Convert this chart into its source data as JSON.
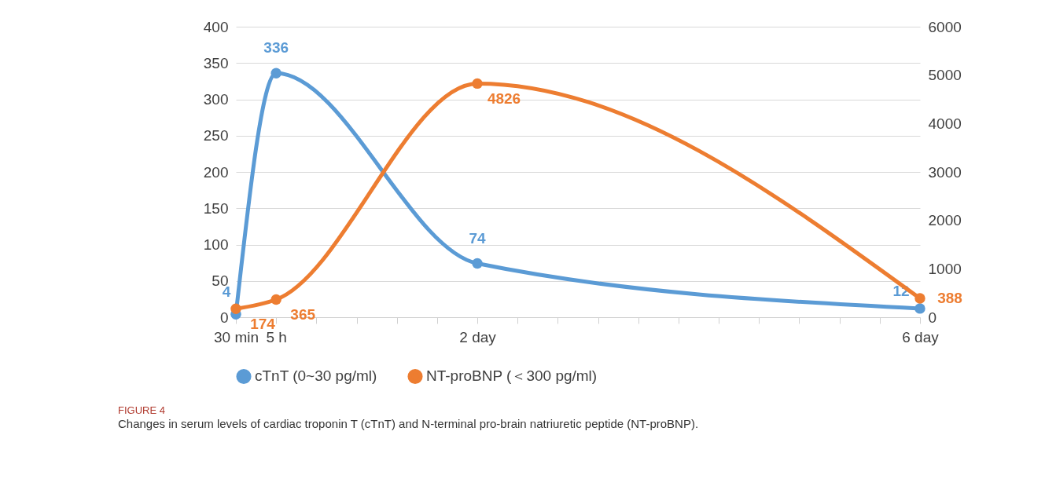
{
  "chart_data": {
    "type": "line",
    "title": "FIGURE 4",
    "subtitle": "Changes in serum levels of cardiac troponin T (cTnT) and N-terminal pro-brain natriuretic peptide (NT-proBNP).",
    "categories": [
      "30 min",
      "5 h",
      null,
      null,
      null,
      null,
      "2 day",
      null,
      null,
      null,
      null,
      null,
      null,
      null,
      null,
      null,
      null,
      "6 day"
    ],
    "series": [
      {
        "name": "cTnT (0~30 pg/ml)",
        "color": "#5b9bd5",
        "values": [
          4,
          336,
          null,
          null,
          null,
          null,
          74,
          null,
          null,
          null,
          null,
          null,
          null,
          null,
          null,
          null,
          null,
          12
        ]
      },
      {
        "name": "NT-proBNP (＜300 pg/ml)",
        "color": "#ed7d31",
        "axis": "y2",
        "values": [
          174,
          365,
          null,
          null,
          null,
          null,
          4826,
          null,
          null,
          null,
          null,
          null,
          null,
          null,
          null,
          null,
          null,
          388
        ]
      }
    ],
    "ylim": [
      0,
      400
    ],
    "yticks": [
      0,
      50,
      100,
      150,
      200,
      250,
      300,
      350,
      400
    ],
    "y2lim": [
      0,
      6000
    ],
    "y2ticks": [
      0,
      1000,
      2000,
      3000,
      4000,
      5000,
      6000
    ],
    "grid": "y",
    "legend": "bottom",
    "marker": "circle",
    "line_style": "solid",
    "data_labels": true
  }
}
